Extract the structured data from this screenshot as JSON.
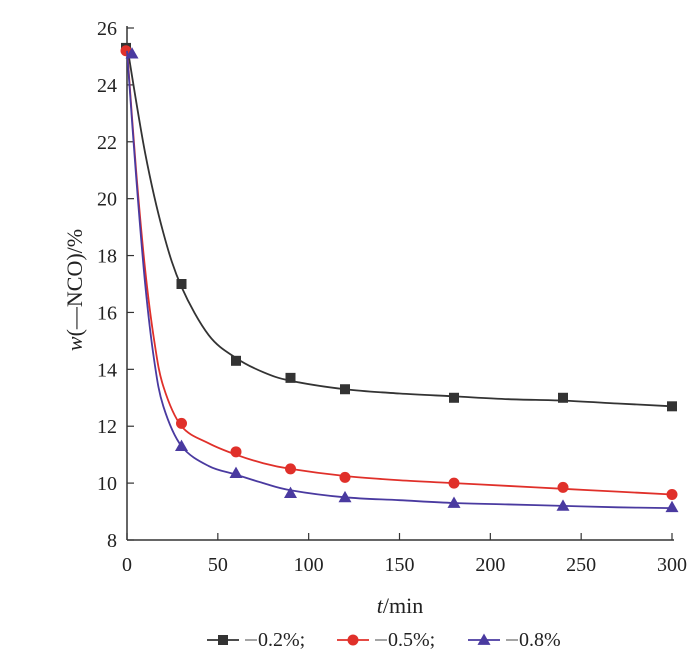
{
  "chart_data": {
    "type": "line",
    "title": "",
    "xlabel_var": "t",
    "xlabel_unit": "/min",
    "ylabel_var": "w",
    "ylabel_rest": "(—NCO)/%",
    "xlim": [
      0,
      300
    ],
    "ylim": [
      8,
      26
    ],
    "xticks": [
      0,
      50,
      100,
      150,
      200,
      250,
      300
    ],
    "yticks": [
      8,
      10,
      12,
      14,
      16,
      18,
      20,
      22,
      24,
      26
    ],
    "grid": false,
    "legend_position": "bottom",
    "legend_separator": ";",
    "series": [
      {
        "name": "0.2%",
        "color": "#333333",
        "marker": "square",
        "x": [
          0,
          30,
          60,
          90,
          120,
          180,
          240,
          300
        ],
        "values": [
          25.3,
          17.0,
          14.3,
          13.7,
          13.3,
          13.0,
          13.0,
          12.7
        ],
        "fit": [
          [
            0,
            25.4
          ],
          [
            10,
            21.6
          ],
          [
            20,
            18.8
          ],
          [
            30,
            16.9
          ],
          [
            45,
            15.2
          ],
          [
            60,
            14.4
          ],
          [
            75,
            13.9
          ],
          [
            90,
            13.6
          ],
          [
            120,
            13.3
          ],
          [
            150,
            13.15
          ],
          [
            180,
            13.05
          ],
          [
            210,
            12.95
          ],
          [
            240,
            12.9
          ],
          [
            270,
            12.8
          ],
          [
            300,
            12.7
          ]
        ]
      },
      {
        "name": "0.5%",
        "color": "#e0302a",
        "marker": "circle",
        "x": [
          0,
          30,
          60,
          90,
          120,
          180,
          240,
          300
        ],
        "values": [
          25.2,
          12.1,
          11.1,
          10.5,
          10.2,
          10.0,
          9.85,
          9.6
        ],
        "fit": [
          [
            0,
            25.3
          ],
          [
            5,
            21.0
          ],
          [
            10,
            17.5
          ],
          [
            15,
            15.0
          ],
          [
            20,
            13.4
          ],
          [
            30,
            12.0
          ],
          [
            45,
            11.4
          ],
          [
            60,
            11.0
          ],
          [
            75,
            10.7
          ],
          [
            90,
            10.5
          ],
          [
            120,
            10.25
          ],
          [
            150,
            10.1
          ],
          [
            180,
            10.0
          ],
          [
            210,
            9.9
          ],
          [
            240,
            9.8
          ],
          [
            270,
            9.7
          ],
          [
            300,
            9.6
          ]
        ]
      },
      {
        "name": "0.8%",
        "color": "#4a3aa0",
        "marker": "triangle",
        "x": [
          0,
          30,
          60,
          90,
          120,
          180,
          240,
          300
        ],
        "values": [
          25.1,
          11.3,
          10.35,
          9.65,
          9.5,
          9.3,
          9.2,
          9.15
        ],
        "fit": [
          [
            0,
            25.2
          ],
          [
            5,
            20.8
          ],
          [
            10,
            17.0
          ],
          [
            15,
            14.3
          ],
          [
            20,
            12.7
          ],
          [
            30,
            11.3
          ],
          [
            45,
            10.6
          ],
          [
            60,
            10.3
          ],
          [
            75,
            10.0
          ],
          [
            90,
            9.75
          ],
          [
            120,
            9.5
          ],
          [
            150,
            9.4
          ],
          [
            180,
            9.3
          ],
          [
            210,
            9.25
          ],
          [
            240,
            9.2
          ],
          [
            270,
            9.15
          ],
          [
            300,
            9.12
          ]
        ]
      }
    ]
  }
}
